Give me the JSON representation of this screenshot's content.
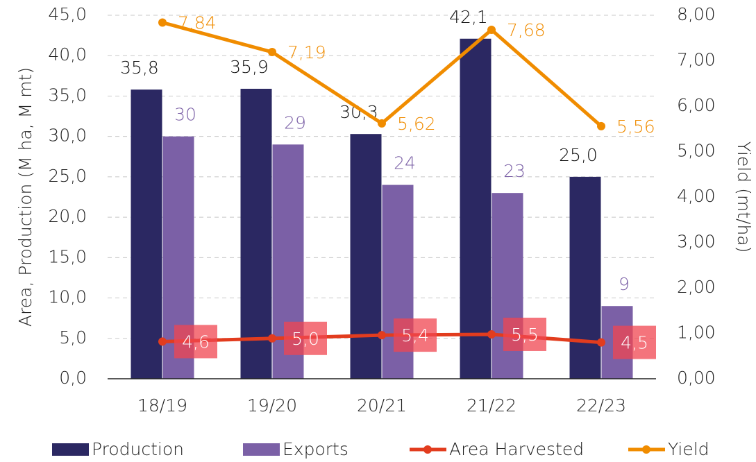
{
  "chart_data": {
    "type": "bar",
    "categories": [
      "18/19",
      "19/20",
      "20/21",
      "21/22",
      "22/23"
    ],
    "series": [
      {
        "name": "Production",
        "type": "bar",
        "color": "#2b2862",
        "values": [
          35.8,
          35.9,
          30.3,
          42.1,
          25.0
        ],
        "value_labels": [
          "35,8",
          "35,9",
          "30,3",
          "42,1",
          "25,0"
        ]
      },
      {
        "name": "Exports",
        "type": "bar",
        "color": "#7b60a6",
        "values": [
          30,
          29,
          24,
          23,
          9
        ]
      },
      {
        "name": "Area Harvested",
        "type": "line",
        "color": "#e23c1e",
        "values": [
          4.6,
          5.0,
          5.4,
          5.5,
          4.5
        ],
        "value_labels": [
          "4,6",
          "5,0",
          "5,4",
          "5,5",
          "4,5"
        ]
      },
      {
        "name": "Yield",
        "type": "line",
        "axis": "y2",
        "color": "#f08c00",
        "values": [
          7.84,
          7.19,
          5.62,
          7.68,
          5.56
        ],
        "value_labels": [
          "7,84",
          "7,19",
          "5,62",
          "7,68",
          "5,56"
        ]
      }
    ],
    "y_label": "Area, Production (M ha, M mt)",
    "y2_label": "Yield (mt/ha)",
    "ylim": [
      0,
      45
    ],
    "yticks": [
      {
        "value": 0,
        "label": "0,0"
      },
      {
        "value": 5,
        "label": "5,0"
      },
      {
        "value": 10,
        "label": "10,0"
      },
      {
        "value": 15,
        "label": "15,0"
      },
      {
        "value": 20,
        "label": "20,0"
      },
      {
        "value": 25,
        "label": "25,0"
      },
      {
        "value": 30,
        "label": "30,0"
      },
      {
        "value": 35,
        "label": "35,0"
      },
      {
        "value": 40,
        "label": "40,0"
      },
      {
        "value": 45,
        "label": "45,0"
      }
    ],
    "y2lim": [
      0,
      8
    ],
    "y2ticks": [
      {
        "value": 0,
        "label": "0,00"
      },
      {
        "value": 1,
        "label": "1,00"
      },
      {
        "value": 2,
        "label": "2,00"
      },
      {
        "value": 3,
        "label": "3,00"
      },
      {
        "value": 4,
        "label": "4,00"
      },
      {
        "value": 5,
        "label": "5,00"
      },
      {
        "value": 6,
        "label": "6,00"
      },
      {
        "value": 7,
        "label": "7,00"
      },
      {
        "value": 8,
        "label": "8,00"
      }
    ],
    "grid": true,
    "legend": "bottom"
  }
}
